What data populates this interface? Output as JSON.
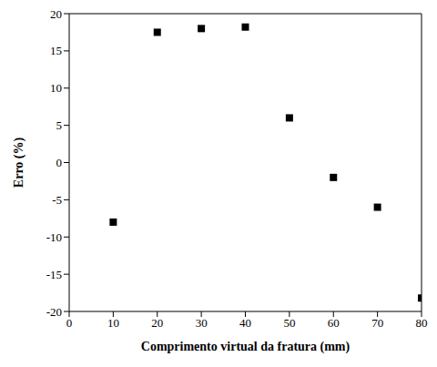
{
  "chart_data": {
    "type": "scatter",
    "x_label": "Comprimento virtual da fratura (mm)",
    "y_label": "Erro (%)",
    "x": [
      10,
      20,
      30,
      40,
      50,
      60,
      70,
      80
    ],
    "values": [
      -8,
      17.5,
      18,
      18.2,
      6,
      -2,
      -6,
      -18.2
    ],
    "color": "#000000",
    "marker": "square",
    "xlim": [
      0,
      80
    ],
    "xticks": [
      0,
      10,
      20,
      30,
      40,
      50,
      60,
      70,
      80
    ],
    "ylim": [
      -20,
      20
    ],
    "yticks": [
      -20,
      -15,
      -10,
      -5,
      0,
      5,
      10,
      15,
      20
    ],
    "grid": false
  }
}
